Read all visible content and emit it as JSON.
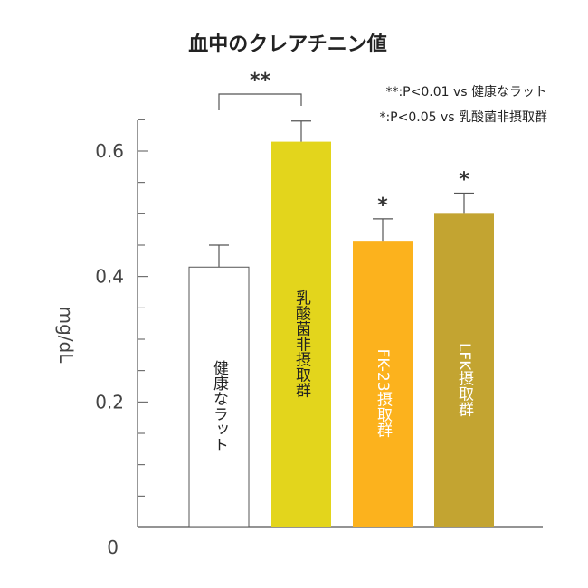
{
  "chart_data": {
    "type": "bar",
    "title": "血中のクレアチニン値",
    "ylabel": "mg/dL",
    "ylim": [
      0,
      0.6
    ],
    "yticks": [
      "0",
      "0.2",
      "0.4",
      "0.6"
    ],
    "ytick_values": [
      0,
      0.2,
      0.4,
      0.6
    ],
    "categories": [
      "健康なラット",
      "乳酸菌非摂取群",
      "FK-23摂取群",
      "LFK摂取群"
    ],
    "values": [
      0.415,
      0.615,
      0.457,
      0.5
    ],
    "errors": [
      0.035,
      0.033,
      0.035,
      0.033
    ],
    "bar_colors": [
      "#ffffff",
      "#e3d51c",
      "#fcb21d",
      "#c3a431"
    ],
    "label_colors": [
      "#222222",
      "#222222",
      "#ffffff",
      "#ffffff"
    ],
    "significance": [
      {
        "bar": 1,
        "mark": "**",
        "bracket_to": 0
      },
      {
        "bar": 2,
        "mark": "*"
      },
      {
        "bar": 3,
        "mark": "*"
      }
    ],
    "legend": [
      {
        "mark": "**",
        "text": ":P<0.01 vs 健康なラット"
      },
      {
        "mark": "*",
        "text": ":P<0.05 vs 乳酸菌非摂取群"
      }
    ],
    "grid": false
  }
}
